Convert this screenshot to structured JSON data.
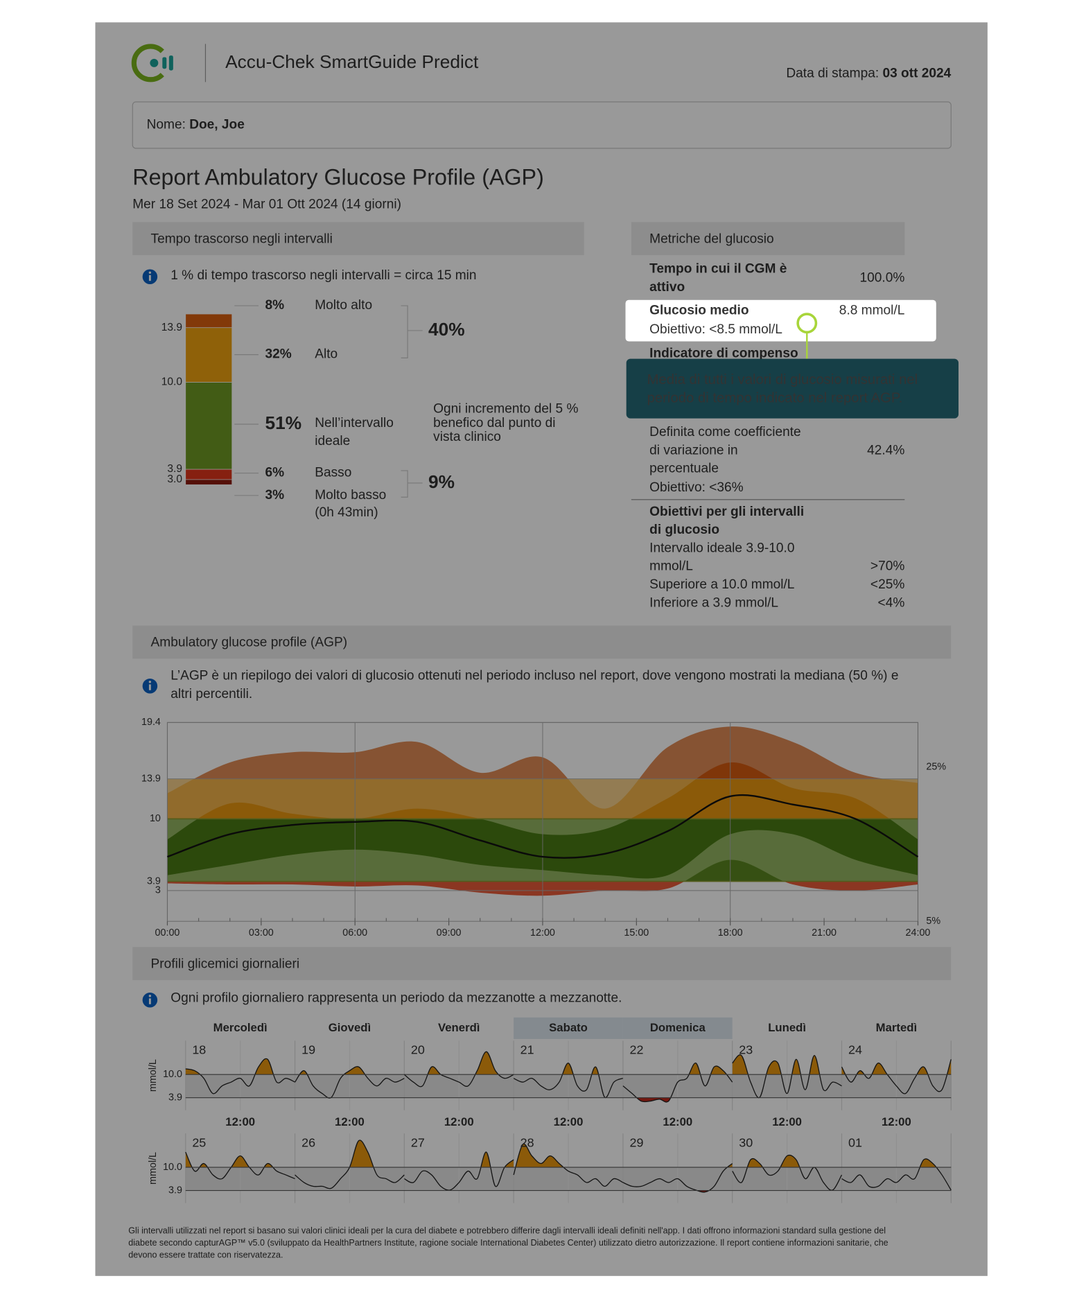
{
  "header": {
    "app_name": "Accu-Chek SmartGuide Predict",
    "print_label": "Data di stampa:",
    "print_date": "03 ott 2024"
  },
  "patient": {
    "label": "Nome:",
    "name": "Doe, Joe"
  },
  "report": {
    "title": "Report Ambulatory Glucose Profile (AGP)",
    "period": "Mer 18 Set 2024 - Mar 01 Ott 2024 (14 giorni)"
  },
  "time_in_ranges": {
    "section_title": "Tempo trascorso negli intervalli",
    "info": "1 % di tempo trascorso negli intervalli = circa 15 min"
  },
  "metrics": {
    "section_title": "Metriche del glucosio",
    "cgm_active": {
      "name_lines": [
        "Tempo in cui il CGM è",
        "attivo"
      ],
      "value": "100.0%"
    },
    "mean_glucose": {
      "name": "Glucosio medio",
      "target": "Obiettivo: <8.5 mmol/L",
      "value": "8.8 mmol/L"
    },
    "gmi": {
      "name": "Indicatore di compenso"
    },
    "variability": {
      "description_lines": [
        "Definita come coefficiente",
        "di variazione in",
        "percentuale"
      ],
      "target": "Obiettivo: <36%",
      "value": "42.4%"
    },
    "range_targets": {
      "title_lines": [
        "Obiettivi per gli intervalli",
        "di glucosio"
      ],
      "rows": [
        {
          "label_lines": [
            "Intervallo ideale 3.9-10.0",
            "mmol/L"
          ],
          "value": ">70%"
        },
        {
          "label_lines": [
            "Superiore a 10.0 mmol/L"
          ],
          "value": "<25%"
        },
        {
          "label_lines": [
            "Inferiore a 3.9 mmol/L"
          ],
          "value": "<4%"
        }
      ]
    }
  },
  "tooltip": {
    "lines": [
      "Media di tutti i valori di glucosio misurati nel",
      "periodo di tempo indicato nel report AGP."
    ]
  },
  "agp_section": {
    "section_title": "Ambulatory glucose profile (AGP)",
    "info_lines": [
      "L’AGP è un riepilogo dei valori di glucosio ottenuti nel periodo incluso nel report, dove vengono mostrati la mediana (50 %) e",
      "altri percentili."
    ]
  },
  "daily_section": {
    "section_title": "Profili glicemici giornalieri",
    "info": "Ogni profilo giornaliero rappresenta un periodo da mezzanotte a mezzanotte."
  },
  "footer": {
    "lines": [
      "Gli intervalli utilizzati nel report si basano sui valori clinici ideali per la cura del diabete e potrebbero differire dagli intervalli ideali definiti nell'app. I dati offrono informazioni standard sulla gestione del",
      "diabete secondo capturAGP™ v5.0 (sviluppato da HealthPartners Institute, ragione sociale International Diabetes Center) utilizzato dietro autorizzazione. Il report contiene informazioni sanitarie, che",
      "devono essere trattate con riservatezza."
    ]
  },
  "chart_data": [
    {
      "type": "stacked_bar",
      "categories": [
        "Molto alto",
        "Alto",
        "Nell’intervallo ideale",
        "Basso",
        "Molto basso"
      ],
      "values": [
        8,
        32,
        51,
        6,
        3
      ],
      "value_labels": [
        "8%",
        "32%",
        "51%",
        "6%",
        "3%"
      ],
      "colors": [
        "#d9600f",
        "#eea20f",
        "#6e9a24",
        "#e0361c",
        "#8e1b10"
      ],
      "boundary_labels": [
        13.9,
        {
          "value": 10,
          "label": "10.0"
        },
        3.9,
        {
          "value": 3,
          "label": "3.0"
        }
      ],
      "group_totals": [
        40,
        9
      ],
      "group_total_labels": [
        "40%",
        "9%"
      ],
      "very_low_duration": "(0h 43min)",
      "note_lines": [
        "Ogni incremento del 5 %",
        "benefico dal punto di",
        "vista clinico"
      ]
    },
    {
      "type": "agp",
      "x": [
        0,
        2,
        4,
        6,
        8,
        10,
        12,
        14,
        16,
        18,
        20,
        22,
        24
      ],
      "xlim": [
        0,
        24
      ],
      "xticks": [
        {
          "value": 0,
          "label": "00:00"
        },
        {
          "value": 3,
          "label": "03:00"
        },
        {
          "value": 6,
          "label": "06:00"
        },
        {
          "value": 9,
          "label": "09:00"
        },
        {
          "value": 12,
          "label": "12:00"
        },
        {
          "value": 15,
          "label": "15:00"
        },
        {
          "value": 18,
          "label": "18:00"
        },
        {
          "value": 21,
          "label": "21:00"
        },
        {
          "value": 24,
          "label": "24:00"
        }
      ],
      "ylim": [
        0,
        19.4
      ],
      "yticks": [
        3,
        3.9,
        10,
        13.9,
        19.4
      ],
      "median": [
        6.3,
        8.5,
        9.4,
        9.7,
        9.7,
        7.9,
        6.3,
        6.6,
        8.8,
        12.2,
        11.4,
        10.0,
        6.3
      ],
      "p25": [
        4.5,
        5.5,
        6.5,
        7.0,
        6.5,
        5.5,
        5.0,
        4.5,
        4.5,
        8.5,
        8.5,
        6.0,
        4.5
      ],
      "p75": [
        8.0,
        11.5,
        10.5,
        10.0,
        11.0,
        10.0,
        8.5,
        9.0,
        12.0,
        15.5,
        13.0,
        12.0,
        8.0
      ],
      "p5": [
        3.7,
        3.6,
        3.6,
        3.4,
        3.5,
        2.8,
        2.5,
        3.0,
        3.2,
        6.0,
        3.6,
        3.0,
        3.6
      ],
      "p95": [
        12.5,
        15.5,
        16.5,
        16.5,
        17.5,
        14.5,
        16.0,
        11.0,
        17.0,
        19.0,
        17.5,
        14.5,
        13.5
      ],
      "side_labels": [
        "25%",
        "5%"
      ],
      "zone_colors_outer": [
        "#e08a55",
        "#f2b24a",
        "#93b561",
        "#e85a3a"
      ],
      "zone_colors_inner": [
        "#d45a10",
        "#e8960f",
        "#4a7a14",
        "#c0281c"
      ]
    },
    {
      "type": "daily_profiles",
      "weekdays": [
        "Mercoledì",
        "Giovedì",
        "Venerdì",
        "Sabato",
        "Domenica",
        "Lunedì",
        "Martedì"
      ],
      "highlight_columns": [
        3,
        4
      ],
      "x": [
        0,
        2,
        4,
        6,
        8,
        10,
        12,
        14,
        16,
        18,
        20,
        22,
        24
      ],
      "xlim": [
        0,
        24
      ],
      "ylim": [
        0.6,
        18.9
      ],
      "yticks": [
        3.9,
        {
          "value": 10,
          "label": "10.0"
        }
      ],
      "y_label": "mmol/L",
      "noon_label": "12:00",
      "days": [
        {
          "label": "18",
          "values": [
            11.5,
            11,
            9,
            5,
            7,
            8,
            9,
            7,
            12,
            14,
            8,
            9,
            8
          ]
        },
        {
          "label": "19",
          "values": [
            8,
            11,
            7,
            5,
            4,
            9,
            11,
            12,
            9,
            7,
            9,
            8,
            9
          ]
        },
        {
          "label": "20",
          "values": [
            10,
            8,
            7,
            12,
            10,
            9,
            8,
            7,
            11,
            16,
            11,
            9,
            10
          ]
        },
        {
          "label": "21",
          "values": [
            9,
            8,
            9,
            7,
            6,
            8,
            13,
            7,
            6,
            12,
            4,
            8,
            9
          ]
        },
        {
          "label": "22",
          "values": [
            7,
            5,
            3,
            3,
            3.5,
            3,
            8,
            9,
            13,
            7,
            12,
            11,
            8
          ]
        },
        {
          "label": "23",
          "values": [
            13,
            15,
            8,
            4,
            12,
            13,
            5,
            14,
            6,
            15,
            6,
            8,
            7
          ]
        },
        {
          "label": "24",
          "values": [
            12,
            8,
            11,
            9,
            13,
            10,
            7,
            5,
            9,
            12,
            7,
            6,
            14
          ]
        },
        {
          "label": "25",
          "values": [
            14,
            9,
            11,
            8,
            7,
            10,
            13,
            10,
            8,
            11,
            9,
            8,
            7
          ]
        },
        {
          "label": "26",
          "values": [
            8,
            6,
            5,
            5,
            4.5,
            7,
            10,
            17,
            14,
            8,
            7,
            6,
            8
          ]
        },
        {
          "label": "27",
          "values": [
            7,
            6,
            9,
            8,
            5,
            4,
            6,
            9,
            7,
            14,
            5,
            10,
            12
          ]
        },
        {
          "label": "28",
          "values": [
            8,
            16,
            13,
            11,
            13,
            11,
            9,
            8,
            6,
            7,
            5,
            7,
            6
          ]
        },
        {
          "label": "29",
          "values": [
            6,
            5,
            5,
            6,
            7,
            6,
            7,
            5,
            4,
            3.5,
            5,
            9,
            11
          ]
        },
        {
          "label": "30",
          "values": [
            9,
            6,
            12,
            11,
            8,
            9,
            13,
            12,
            7,
            10,
            6,
            4,
            8
          ]
        },
        {
          "label": "01",
          "values": [
            7,
            6,
            8,
            5,
            5,
            7,
            6,
            8,
            7,
            12,
            11,
            8,
            4
          ]
        }
      ],
      "colors": {
        "above": "#e8960f",
        "below": "#c0281c",
        "line": "#222222",
        "band": "#e4e4e4"
      }
    }
  ]
}
